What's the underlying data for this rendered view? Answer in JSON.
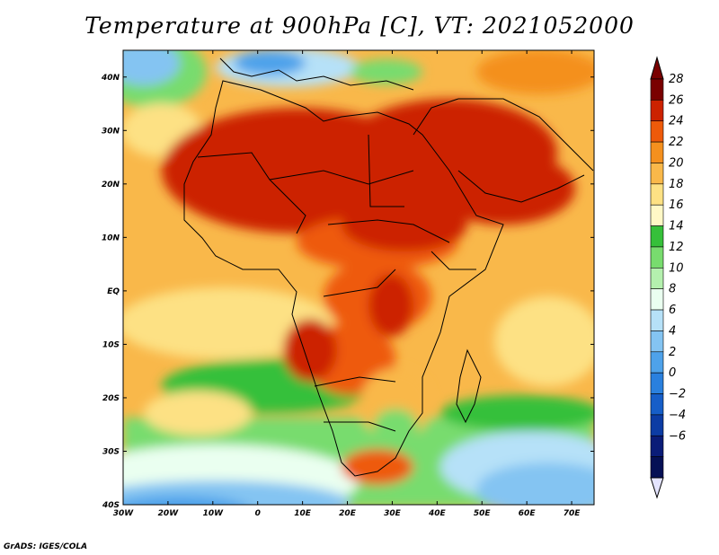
{
  "title": "Temperature at 900hPa [C], VT: 2021052000",
  "credit": "GrADS: IGES/COLA",
  "map": {
    "lat_ticks": [
      "40N",
      "30N",
      "20N",
      "10N",
      "EQ",
      "10S",
      "20S",
      "30S",
      "40S"
    ],
    "lon_ticks": [
      "30W",
      "20W",
      "10W",
      "0",
      "10E",
      "20E",
      "30E",
      "40E",
      "50E",
      "60E",
      "70E"
    ],
    "lat_range": [
      -40,
      45
    ],
    "lon_range": [
      -30,
      75
    ]
  },
  "colorbar": {
    "labels": [
      "28",
      "26",
      "24",
      "22",
      "20",
      "18",
      "16",
      "14",
      "12",
      "10",
      "8",
      "6",
      "4",
      "2",
      "0",
      "−2",
      "−4",
      "−6"
    ],
    "colors": [
      "#7a0000",
      "#cc2200",
      "#ee5a0a",
      "#f4901e",
      "#f9b84a",
      "#fde184",
      "#fff8c6",
      "#36c03a",
      "#78dc6e",
      "#b4f0ae",
      "#eafff0",
      "#b6e1f8",
      "#84c4f2",
      "#4ea2ea",
      "#2a80de",
      "#165ec8",
      "#0c3ca4",
      "#0a1c78",
      "#051055"
    ],
    "top_arrow_color": "#7a0000",
    "bottom_arrow_color": "#e4e4ff"
  }
}
